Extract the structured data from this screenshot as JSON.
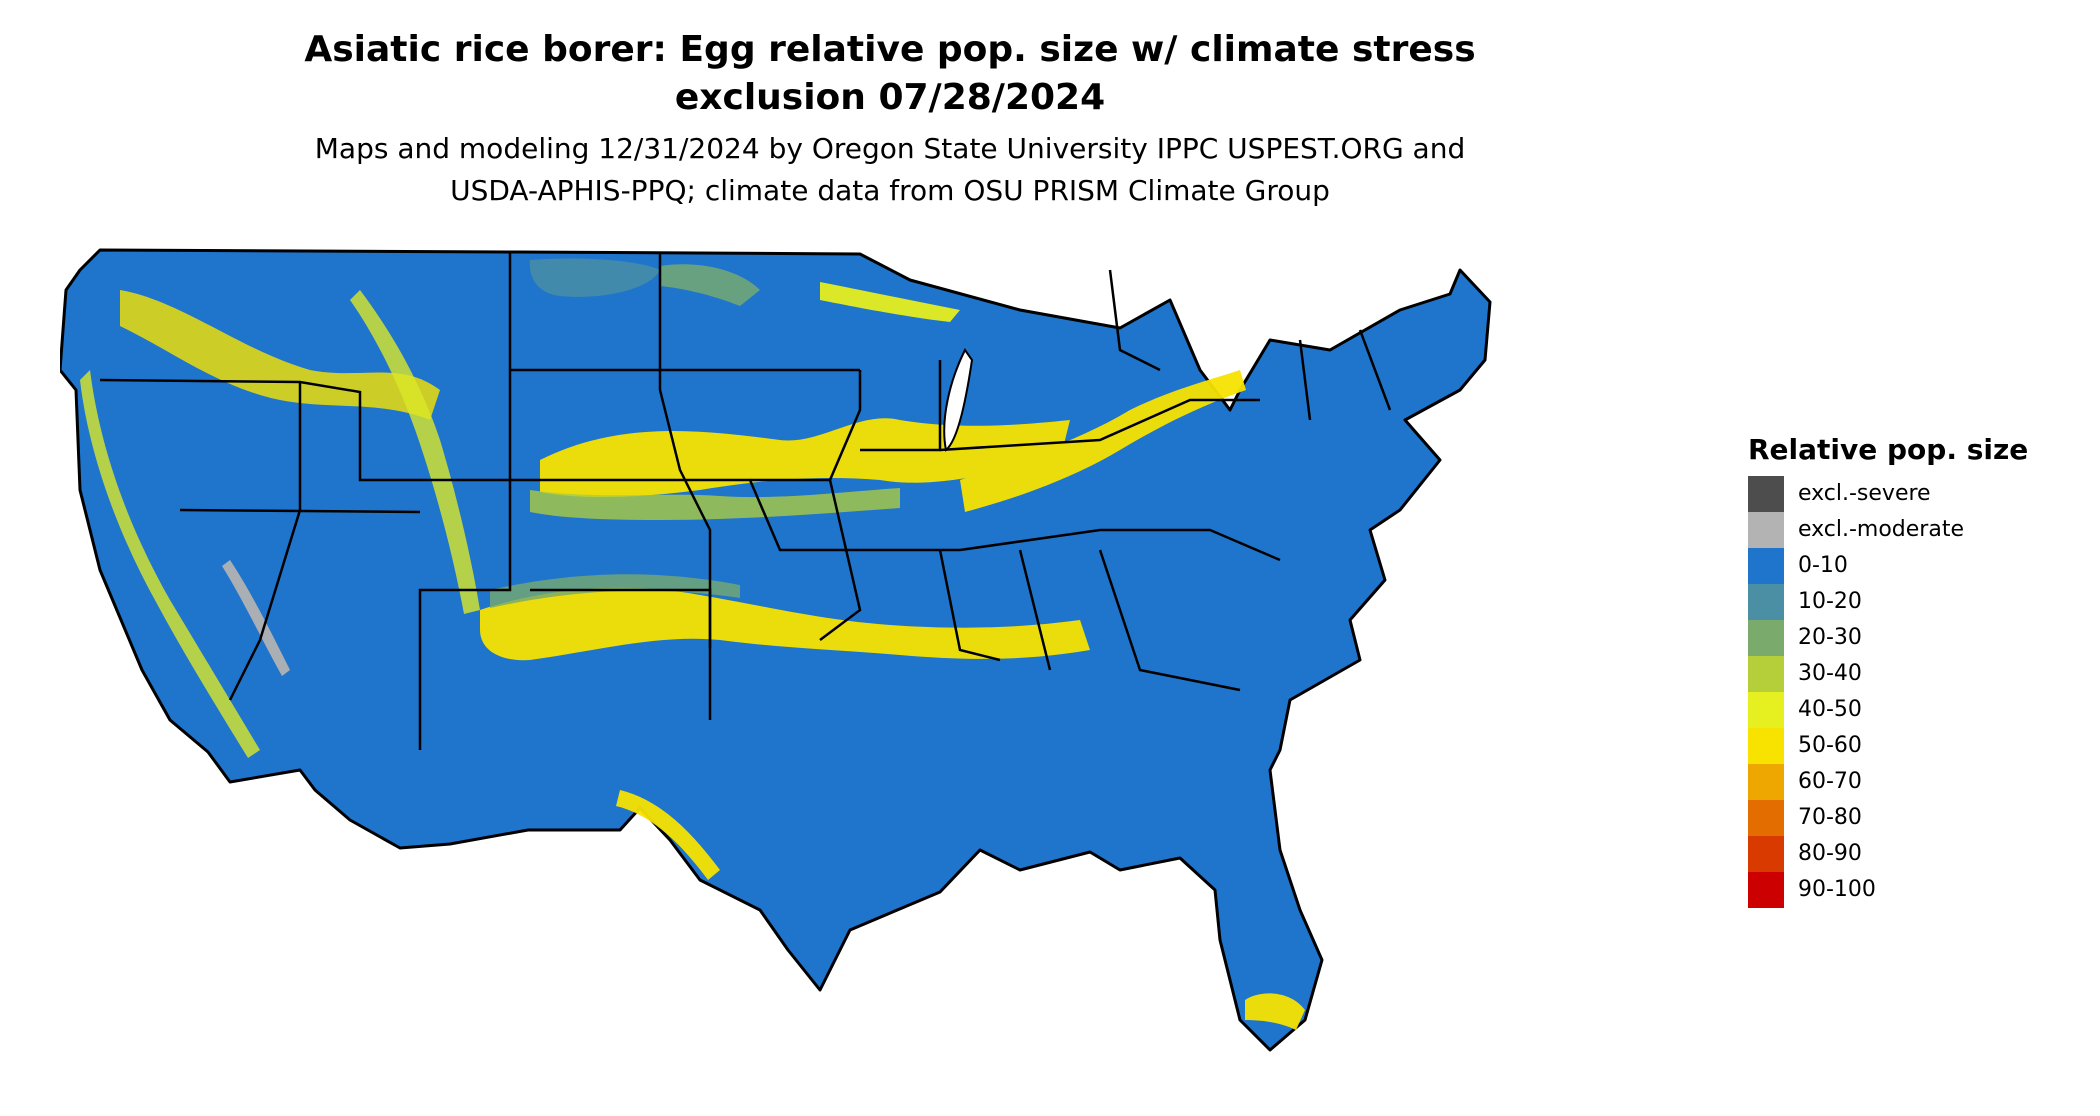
{
  "map": {
    "title_line1": "Asiatic rice borer: Egg relative pop. size w/ climate stress",
    "title_line2": "exclusion 07/28/2024",
    "subtitle_line1": "Maps and modeling 12/31/2024 by Oregon State University IPPC USPEST.ORG and",
    "subtitle_line2": "USDA-APHIS-PPQ; climate data from OSU PRISM Climate Group",
    "region": "contiguous United States"
  },
  "legend": {
    "title": "Relative pop. size",
    "items": [
      {
        "label": "excl.-severe",
        "color": "#4d4d4d"
      },
      {
        "label": "excl.-moderate",
        "color": "#b3b3b3"
      },
      {
        "label": "0-10",
        "color": "#1f74cc"
      },
      {
        "label": "10-20",
        "color": "#4a8fa3"
      },
      {
        "label": "20-30",
        "color": "#7aab6c"
      },
      {
        "label": "30-40",
        "color": "#b4cf3a"
      },
      {
        "label": "40-50",
        "color": "#e6ef1f"
      },
      {
        "label": "50-60",
        "color": "#f7e200"
      },
      {
        "label": "60-70",
        "color": "#eea700"
      },
      {
        "label": "70-80",
        "color": "#e46d00"
      },
      {
        "label": "80-90",
        "color": "#d93a00"
      },
      {
        "label": "90-100",
        "color": "#cc0000"
      }
    ]
  }
}
